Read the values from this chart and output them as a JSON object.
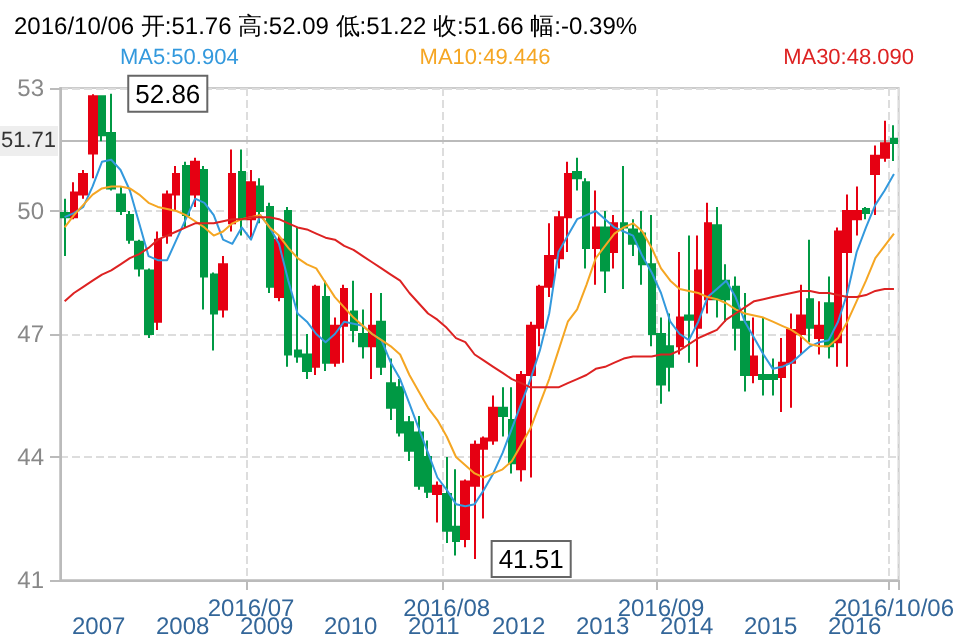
{
  "chart_data": {
    "type": "candlestick",
    "title": "2016/10/06 开:51.76 高:52.09 低:51.22 收:51.66 幅:-0.39%",
    "categories": [
      null,
      null,
      null,
      null,
      null,
      null,
      null,
      null,
      null,
      null,
      null,
      null,
      null,
      null,
      null,
      null,
      null,
      null,
      null,
      null,
      "2016/07",
      null,
      null,
      null,
      null,
      null,
      null,
      null,
      null,
      null,
      null,
      null,
      null,
      null,
      null,
      null,
      null,
      null,
      null,
      null,
      null,
      "2016/08",
      null,
      null,
      null,
      null,
      null,
      null,
      null,
      null,
      null,
      null,
      null,
      null,
      null,
      null,
      null,
      null,
      null,
      null,
      null,
      null,
      null,
      null,
      "2016/09",
      null,
      null,
      null,
      null,
      null,
      null,
      null,
      null,
      null,
      null,
      null,
      null,
      null,
      null,
      null,
      null,
      null,
      null,
      null,
      null,
      null,
      null,
      null,
      null,
      "2016/10/06"
    ],
    "ohlc": [
      [
        49.95,
        50.3,
        48.9,
        49.85
      ],
      [
        49.85,
        50.7,
        49.8,
        50.45
      ],
      [
        50.4,
        51.0,
        50.3,
        50.9
      ],
      [
        51.4,
        52.85,
        50.8,
        52.8
      ],
      [
        52.8,
        52.8,
        51.7,
        51.85
      ],
      [
        51.9,
        52.86,
        50.5,
        50.55
      ],
      [
        50.4,
        50.6,
        49.9,
        50.0
      ],
      [
        49.9,
        50.0,
        49.2,
        49.3
      ],
      [
        49.25,
        49.3,
        48.4,
        48.6
      ],
      [
        48.55,
        48.6,
        46.9,
        47.0
      ],
      [
        47.3,
        49.5,
        47.1,
        49.3
      ],
      [
        49.4,
        50.5,
        49.2,
        50.4
      ],
      [
        50.4,
        51.1,
        50.0,
        50.9
      ],
      [
        51.1,
        51.2,
        49.6,
        49.9
      ],
      [
        50.4,
        51.3,
        50.1,
        51.2
      ],
      [
        51.0,
        51.1,
        47.6,
        48.4
      ],
      [
        48.45,
        48.5,
        46.6,
        47.5
      ],
      [
        47.6,
        48.9,
        47.4,
        48.7
      ],
      [
        49.7,
        51.5,
        49.5,
        50.9
      ],
      [
        50.95,
        51.5,
        49.4,
        49.8
      ],
      [
        49.8,
        51.0,
        49.3,
        50.7
      ],
      [
        50.6,
        50.8,
        49.7,
        50.0
      ],
      [
        50.1,
        50.2,
        48.0,
        48.15
      ],
      [
        47.9,
        49.4,
        47.8,
        49.3
      ],
      [
        50.0,
        50.1,
        46.2,
        46.5
      ],
      [
        46.6,
        49.6,
        46.3,
        46.45
      ],
      [
        46.5,
        47.0,
        45.9,
        46.1
      ],
      [
        46.2,
        48.2,
        46.0,
        48.15
      ],
      [
        47.9,
        48.3,
        46.1,
        46.3
      ],
      [
        46.3,
        47.4,
        46.2,
        47.2
      ],
      [
        47.2,
        48.2,
        46.3,
        48.1
      ],
      [
        47.55,
        48.3,
        46.8,
        47.1
      ],
      [
        47.0,
        47.6,
        46.4,
        46.7
      ],
      [
        46.7,
        48.0,
        45.9,
        47.2
      ],
      [
        47.3,
        48.0,
        46.0,
        46.2
      ],
      [
        45.8,
        46.4,
        44.9,
        45.2
      ],
      [
        45.7,
        45.9,
        44.5,
        44.6
      ],
      [
        44.85,
        45.0,
        43.9,
        44.15
      ],
      [
        44.6,
        45.0,
        43.2,
        43.3
      ],
      [
        44.0,
        44.4,
        43.0,
        43.15
      ],
      [
        43.1,
        43.4,
        42.4,
        43.3
      ],
      [
        43.1,
        44.0,
        41.9,
        42.2
      ],
      [
        42.3,
        43.7,
        41.6,
        41.95
      ],
      [
        42.0,
        43.45,
        41.8,
        43.4
      ],
      [
        43.3,
        44.4,
        41.51,
        44.3
      ],
      [
        44.2,
        44.5,
        42.5,
        44.45
      ],
      [
        44.4,
        45.5,
        44.3,
        45.2
      ],
      [
        45.2,
        45.7,
        44.5,
        45.0
      ],
      [
        44.9,
        45.7,
        43.6,
        43.85
      ],
      [
        43.7,
        46.1,
        43.4,
        46.0
      ],
      [
        46.0,
        47.3,
        43.5,
        47.2
      ],
      [
        47.15,
        48.2,
        46.7,
        48.15
      ],
      [
        48.15,
        49.7,
        47.9,
        48.9
      ],
      [
        48.85,
        50.0,
        48.6,
        49.85
      ],
      [
        49.85,
        51.2,
        49.0,
        50.9
      ],
      [
        50.95,
        51.3,
        50.5,
        50.8
      ],
      [
        50.7,
        50.8,
        48.6,
        49.1
      ],
      [
        49.1,
        50.5,
        48.2,
        49.6
      ],
      [
        49.6,
        50.0,
        48.0,
        48.55
      ],
      [
        49.0,
        49.9,
        48.6,
        49.7
      ],
      [
        49.7,
        51.1,
        48.1,
        49.6
      ],
      [
        49.55,
        49.8,
        48.9,
        49.2
      ],
      [
        49.45,
        50.0,
        48.2,
        48.7
      ],
      [
        48.7,
        49.9,
        46.7,
        47.0
      ],
      [
        47.0,
        47.4,
        45.3,
        45.77
      ],
      [
        46.7,
        47.5,
        45.6,
        46.2
      ],
      [
        46.7,
        49.0,
        46.5,
        47.4
      ],
      [
        47.45,
        49.4,
        46.3,
        47.35
      ],
      [
        47.15,
        49.4,
        46.2,
        48.55
      ],
      [
        47.85,
        50.2,
        47.5,
        49.7
      ],
      [
        49.65,
        50.1,
        47.4,
        47.85
      ],
      [
        48.3,
        48.7,
        47.3,
        47.85
      ],
      [
        48.15,
        48.4,
        46.6,
        47.15
      ],
      [
        47.3,
        48.0,
        45.6,
        46.0
      ],
      [
        46.0,
        47.4,
        45.8,
        46.45
      ],
      [
        46.0,
        47.4,
        45.5,
        45.9
      ],
      [
        46.0,
        46.4,
        45.5,
        45.9
      ],
      [
        45.95,
        46.9,
        45.1,
        46.3
      ],
      [
        46.3,
        47.5,
        45.2,
        47.1
      ],
      [
        47.0,
        48.2,
        46.5,
        47.45
      ],
      [
        47.85,
        49.3,
        46.8,
        47.15
      ],
      [
        46.9,
        47.8,
        46.5,
        47.2
      ],
      [
        47.75,
        48.4,
        46.4,
        46.7
      ],
      [
        46.8,
        49.6,
        46.2,
        49.5
      ],
      [
        49.0,
        50.4,
        46.2,
        50.0
      ],
      [
        49.8,
        50.6,
        49.4,
        50.0
      ],
      [
        50.05,
        50.1,
        49.8,
        49.95
      ],
      [
        50.9,
        51.6,
        49.9,
        51.35
      ],
      [
        51.3,
        52.2,
        51.2,
        51.65
      ],
      [
        51.76,
        52.09,
        51.22,
        51.66
      ]
    ],
    "colors": [
      "#009944",
      "#e60012",
      "#e60012",
      "#e60012",
      "#009944",
      "#009944",
      "#009944",
      "#009944",
      "#009944",
      "#009944",
      "#e60012",
      "#e60012",
      "#e60012",
      "#009944",
      "#e60012",
      "#009944",
      "#009944",
      "#e60012",
      "#e60012",
      "#009944",
      "#e60012",
      "#009944",
      "#009944",
      "#e60012",
      "#009944",
      "#009944",
      "#009944",
      "#e60012",
      "#009944",
      "#e60012",
      "#e60012",
      "#009944",
      "#009944",
      "#e60012",
      "#009944",
      "#009944",
      "#009944",
      "#009944",
      "#009944",
      "#009944",
      "#e60012",
      "#009944",
      "#009944",
      "#e60012",
      "#e60012",
      "#e60012",
      "#e60012",
      "#009944",
      "#009944",
      "#e60012",
      "#e60012",
      "#e60012",
      "#e60012",
      "#e60012",
      "#e60012",
      "#009944",
      "#009944",
      "#e60012",
      "#009944",
      "#e60012",
      "#009944",
      "#009944",
      "#009944",
      "#009944",
      "#009944",
      "#009944",
      "#e60012",
      "#009944",
      "#e60012",
      "#e60012",
      "#009944",
      "#009944",
      "#009944",
      "#009944",
      "#e60012",
      "#009944",
      "#009944",
      "#e60012",
      "#e60012",
      "#e60012",
      "#009944",
      "#e60012",
      "#009944",
      "#e60012",
      "#e60012",
      "#e60012",
      "#009944",
      "#e60012",
      "#e60012",
      "#009944"
    ],
    "series": [
      {
        "name": "MA5:50.904",
        "type": "line",
        "color": "#3399dd",
        "values": [
          49.85,
          49.95,
          50.1,
          50.6,
          51.2,
          51.25,
          51.0,
          50.5,
          49.7,
          48.9,
          48.8,
          48.8,
          49.3,
          49.8,
          50.3,
          50.2,
          49.9,
          49.3,
          49.2,
          49.6,
          49.3,
          49.9,
          49.6,
          49.2,
          48.3,
          47.5,
          47.3,
          47.0,
          46.8,
          47.0,
          47.3,
          47.25,
          47.2,
          47.0,
          46.85,
          46.3,
          45.9,
          45.3,
          44.7,
          44.1,
          43.5,
          43.2,
          42.85,
          42.8,
          42.85,
          43.2,
          43.6,
          44.1,
          44.7,
          45.3,
          45.9,
          46.6,
          47.5,
          49.0,
          49.4,
          49.8,
          49.9,
          50.0,
          49.8,
          49.6,
          49.5,
          49.4,
          48.9,
          48.5,
          48.0,
          47.3,
          47.0,
          46.85,
          47.3,
          47.9,
          48.1,
          48.3,
          47.9,
          47.3,
          46.9,
          46.5,
          46.15,
          46.2,
          46.3,
          46.5,
          46.7,
          46.8,
          46.85,
          47.3,
          48.0,
          49.0,
          49.6,
          50.15,
          50.5,
          50.9
        ]
      },
      {
        "name": "MA10:49.446",
        "type": "line",
        "color": "#f5a623",
        "values": [
          49.6,
          49.9,
          50.15,
          50.4,
          50.55,
          50.6,
          50.6,
          50.55,
          50.4,
          50.2,
          50.1,
          50.05,
          50.0,
          49.9,
          49.75,
          49.6,
          49.4,
          49.5,
          49.7,
          49.8,
          49.85,
          49.9,
          49.6,
          49.4,
          49.1,
          48.85,
          48.7,
          48.6,
          48.25,
          47.9,
          47.65,
          47.4,
          47.2,
          47.0,
          46.85,
          46.7,
          46.5,
          46.0,
          45.6,
          45.2,
          44.9,
          44.5,
          44.0,
          43.8,
          43.6,
          43.5,
          43.6,
          43.7,
          43.9,
          44.3,
          44.7,
          45.3,
          45.9,
          46.6,
          47.3,
          47.6,
          48.2,
          48.85,
          49.15,
          49.45,
          49.6,
          49.7,
          49.5,
          49.1,
          48.6,
          48.3,
          48.1,
          48.05,
          48.0,
          47.9,
          47.85,
          47.75,
          47.6,
          47.5,
          47.45,
          47.4,
          47.3,
          47.2,
          47.1,
          46.95,
          46.75,
          46.7,
          46.7,
          46.9,
          47.3,
          47.8,
          48.3,
          48.85,
          49.15,
          49.45
        ]
      },
      {
        "name": "MA30:48.090",
        "type": "line",
        "color": "#dd2222",
        "values": [
          47.8,
          48.0,
          48.15,
          48.3,
          48.45,
          48.55,
          48.7,
          48.85,
          48.95,
          49.1,
          49.3,
          49.4,
          49.5,
          49.6,
          49.7,
          49.7,
          49.7,
          49.75,
          49.8,
          49.8,
          49.85,
          49.85,
          49.85,
          49.8,
          49.7,
          49.6,
          49.55,
          49.45,
          49.35,
          49.3,
          49.15,
          49.05,
          48.9,
          48.75,
          48.6,
          48.45,
          48.3,
          48.0,
          47.75,
          47.5,
          47.35,
          47.15,
          46.9,
          46.8,
          46.5,
          46.35,
          46.2,
          46.05,
          45.9,
          45.8,
          45.7,
          45.7,
          45.7,
          45.7,
          45.8,
          45.9,
          46.0,
          46.15,
          46.2,
          46.3,
          46.4,
          46.45,
          46.45,
          46.45,
          46.5,
          46.5,
          46.6,
          46.75,
          46.9,
          47.0,
          47.1,
          47.35,
          47.5,
          47.65,
          47.8,
          47.85,
          47.9,
          47.95,
          48.0,
          48.05,
          48.05,
          48.0,
          48.0,
          47.95,
          47.9,
          47.9,
          47.95,
          48.05,
          48.1,
          48.1
        ]
      }
    ],
    "ylim": [
      41,
      53
    ],
    "yticks": [
      41,
      44,
      47,
      50,
      53
    ],
    "grid": true,
    "legend": "top",
    "ref_lines": [
      {
        "axis": "y",
        "value": 51.71,
        "label": "51.71",
        "color": "#bbbbbb"
      }
    ],
    "annotations": [
      {
        "text": "52.86",
        "y": 52.86
      },
      {
        "text": "41.51",
        "y": 41.51
      },
      "2007",
      "2008",
      "2009",
      "2010",
      "2011",
      "2012",
      "2013",
      "2014",
      "2015",
      "2016"
    ]
  }
}
